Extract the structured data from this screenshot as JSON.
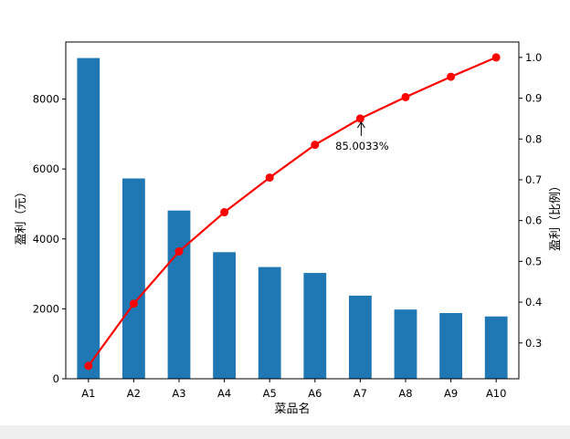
{
  "chart_data": {
    "type": "bar+line",
    "categories": [
      "A1",
      "A2",
      "A3",
      "A4",
      "A5",
      "A6",
      "A7",
      "A8",
      "A9",
      "A10"
    ],
    "bar_series": {
      "values": [
        9173,
        5729,
        4811,
        3620,
        3195,
        3026,
        2378,
        1980,
        1879,
        1782
      ],
      "color": "#1f77b4"
    },
    "line_series": {
      "values": [
        0.2438,
        0.3963,
        0.5242,
        0.6204,
        0.7054,
        0.7858,
        0.85,
        0.9027,
        0.9526,
        1.0
      ],
      "color": "#ff0000"
    },
    "annotation": {
      "text": "85.0033%",
      "category": "A7",
      "value": 0.850033
    },
    "xlabel": "菜品名",
    "ylabel_left": "盈利（元）",
    "ylabel_right": "盈利（比例）",
    "ylim_left": [
      0,
      9632
    ],
    "ylim_right": [
      0.2122,
      1.0378
    ],
    "yticks_left": [
      0,
      2000,
      4000,
      6000,
      8000
    ],
    "yticks_right": [
      0.3,
      0.4,
      0.5,
      0.6,
      0.7,
      0.8,
      0.9,
      1.0
    ],
    "yticks_right_labels": [
      "0.3",
      "0.4",
      "0.5",
      "0.6",
      "0.7",
      "0.8",
      "0.9",
      "1.0"
    ],
    "grid": false,
    "legend": "none"
  }
}
